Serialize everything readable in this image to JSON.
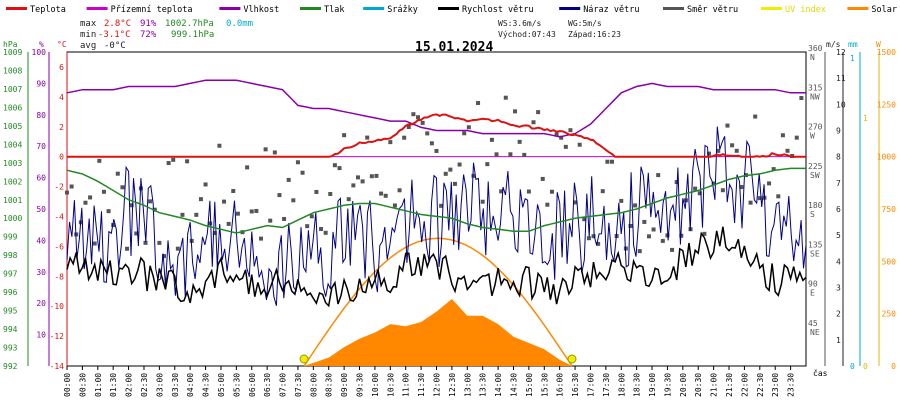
{
  "legend": [
    {
      "label": "Teplota",
      "color": "#dd1111"
    },
    {
      "label": "Přízemní teplota",
      "color": "#cc00cc"
    },
    {
      "label": "Vlhkost",
      "color": "#8800aa"
    },
    {
      "label": "Tlak",
      "color": "#228822"
    },
    {
      "label": "Srážky",
      "color": "#00aacc"
    },
    {
      "label": "Rychlost větru",
      "color": "#000000"
    },
    {
      "label": "Náraz větru",
      "color": "#000088"
    },
    {
      "label": "Směr větru",
      "color": "#555555"
    },
    {
      "label": "UV index",
      "color": "#eeee00"
    },
    {
      "label": "Solar",
      "color": "#ff8800"
    }
  ],
  "stats": {
    "max": {
      "label": "max",
      "temp": "2.8°C",
      "hum": "91%",
      "press": "1002.7hPa",
      "rain": "0.0mm"
    },
    "min": {
      "label": "min",
      "temp": "-3.1°C",
      "hum": "72%",
      "press": "999.1hPa"
    },
    "avg": {
      "label": "avg",
      "temp": "-0°C"
    }
  },
  "title": "15.01.2024",
  "info": {
    "ws": "WS:3.6m/s",
    "wg": "WG:5m/s",
    "sunrise": "Východ:07:43",
    "sunset": "Západ:16:23"
  },
  "axes": {
    "hpa": {
      "unit": "hPa",
      "color": "#228822",
      "ticks": [
        "1009",
        "1008",
        "1007",
        "1006",
        "1005",
        "1004",
        "1003",
        "1002",
        "1001",
        "1000",
        "999",
        "998",
        "997",
        "996",
        "995",
        "994",
        "993",
        "992"
      ]
    },
    "pct": {
      "unit": "%",
      "color": "#8800aa",
      "ticks": [
        "100",
        "90",
        "80",
        "70",
        "60",
        "50",
        "40",
        "30",
        "20",
        "10"
      ]
    },
    "degc": {
      "unit": "°C",
      "color": "#dd1111",
      "ticks": [
        "6",
        "4",
        "2",
        "0",
        "-2",
        "-4",
        "-6",
        "-8",
        "-10",
        "-12",
        "-14"
      ]
    },
    "dir": {
      "color": "#555555",
      "ticks": [
        [
          "360",
          "N"
        ],
        [
          "315",
          "NW"
        ],
        [
          "270",
          "W"
        ],
        [
          "225",
          "SW"
        ],
        [
          "180",
          "S"
        ],
        [
          "135",
          "SE"
        ],
        [
          "90",
          "E"
        ],
        [
          "45",
          "NE"
        ]
      ]
    },
    "ms": {
      "unit": "m/s",
      "color": "#222222",
      "ticks": [
        "12",
        "11",
        "10",
        "9",
        "8",
        "7",
        "6",
        "5",
        "4",
        "3",
        "2",
        "1"
      ]
    },
    "mm": {
      "unit": "mm",
      "color": "#00aacc",
      "ticks": [
        "1",
        "0"
      ]
    },
    "uv": {
      "unit": "UV",
      "color": "#ddbb00",
      "ticks": [
        "1",
        "0"
      ]
    },
    "wm2": {
      "unit": "W",
      "color": "#ff8800",
      "ticks": [
        "1500",
        "1250",
        "1000",
        "750",
        "500",
        "250",
        "0"
      ]
    },
    "xunit": "čas",
    "xticks": [
      "00:00",
      "00:30",
      "01:00",
      "01:30",
      "02:00",
      "02:30",
      "03:00",
      "03:30",
      "04:00",
      "04:30",
      "05:00",
      "05:30",
      "06:00",
      "06:30",
      "07:00",
      "07:30",
      "08:00",
      "08:30",
      "09:00",
      "09:30",
      "10:00",
      "10:30",
      "11:00",
      "11:30",
      "12:00",
      "12:30",
      "13:00",
      "13:30",
      "14:00",
      "14:30",
      "15:00",
      "15:30",
      "16:00",
      "16:30",
      "17:00",
      "17:30",
      "18:00",
      "18:30",
      "19:00",
      "19:30",
      "20:00",
      "20:30",
      "21:00",
      "21:30",
      "22:00",
      "22:30",
      "23:00",
      "23:30"
    ]
  },
  "colors": {
    "temp": "#dd1111",
    "dew": "#cc00cc",
    "hum": "#8800aa",
    "press": "#228822",
    "wind": "#000000",
    "gust": "#000088",
    "dir": "#555555",
    "solar": "#ff8800",
    "uv": "#eeee00"
  },
  "chart_data": {
    "type": "line",
    "title": "15.01.2024",
    "x_range_hours": [
      0,
      24
    ],
    "y_ranges": {
      "temperature_c": [
        -14,
        7
      ],
      "humidity_pct": [
        0,
        100
      ],
      "pressure_hpa": [
        992,
        1009
      ],
      "wind_ms": [
        0,
        12
      ],
      "wind_dir_deg": [
        0,
        360
      ],
      "solar_wm2": [
        0,
        1500
      ]
    },
    "grid": false,
    "legend_position": "top",
    "series": [
      {
        "name": "Teplota",
        "unit": "°C",
        "x": [
          0,
          0.5,
          1,
          1.5,
          2,
          2.5,
          3,
          3.5,
          4,
          4.5,
          5,
          5.5,
          6,
          6.5,
          7,
          7.5,
          8,
          8.5,
          9,
          9.5,
          10,
          10.5,
          11,
          11.5,
          12,
          12.5,
          13,
          13.5,
          14,
          14.5,
          15,
          15.5,
          16,
          16.5,
          17,
          17.5,
          18,
          18.5,
          19,
          19.5,
          20,
          20.5,
          21,
          21.5,
          22,
          22.5,
          23,
          23.5,
          24
        ],
        "values": [
          -1,
          -1.2,
          -1.5,
          -1.2,
          -1.1,
          -1.4,
          -1.5,
          -1.8,
          -2.2,
          -2.5,
          -2.8,
          -3.1,
          -2.9,
          -2.5,
          -2,
          -1.3,
          -0.7,
          -0.1,
          0.5,
          0.9,
          1,
          1.3,
          2,
          2.5,
          2.8,
          2.7,
          2.4,
          2.5,
          2.4,
          2.1,
          2,
          1.8,
          1.7,
          1.4,
          1.2,
          0.5,
          -0.4,
          -0.7,
          -0.9,
          -0.6,
          -0.5,
          -0.2,
          0.1,
          0.1,
          0,
          0,
          0.2,
          0,
          -0.3
        ]
      },
      {
        "name": "Přízemní teplota",
        "unit": "°C",
        "x": [
          0,
          24
        ],
        "values": [
          0,
          0
        ]
      },
      {
        "name": "Vlhkost",
        "unit": "%",
        "x": [
          0,
          0.5,
          1,
          1.5,
          2,
          2.5,
          3,
          3.5,
          4,
          4.5,
          5,
          5.5,
          6,
          6.5,
          7,
          7.5,
          8,
          8.5,
          9,
          9.5,
          10,
          10.5,
          11,
          11.5,
          12,
          12.5,
          13,
          13.5,
          14,
          14.5,
          15,
          15.5,
          16,
          16.5,
          17,
          17.5,
          18,
          18.5,
          19,
          19.5,
          20,
          20.5,
          21,
          21.5,
          22,
          22.5,
          23,
          23.5,
          24
        ],
        "values": [
          87,
          88,
          88,
          88,
          89,
          89,
          89,
          89,
          90,
          91,
          91,
          91,
          90,
          89,
          88,
          83,
          82,
          82,
          81,
          80,
          79,
          78,
          78,
          76,
          75,
          75,
          75,
          74,
          74,
          74,
          74,
          74,
          73,
          74,
          77,
          82,
          87,
          89,
          90,
          89,
          89,
          89,
          88,
          88,
          88,
          88,
          88,
          87,
          87
        ]
      },
      {
        "name": "Tlak",
        "unit": "hPa",
        "x": [
          0,
          0.5,
          1,
          1.5,
          2,
          2.5,
          3,
          3.5,
          4,
          4.5,
          5,
          5.5,
          6,
          6.5,
          7,
          7.5,
          8,
          8.5,
          9,
          9.5,
          10,
          10.5,
          11,
          11.5,
          12,
          12.5,
          13,
          13.5,
          14,
          14.5,
          15,
          15.5,
          16,
          16.5,
          17,
          17.5,
          18,
          18.5,
          19,
          19.5,
          20,
          20.5,
          21,
          21.5,
          22,
          22.5,
          23,
          23.5,
          24
        ],
        "values": [
          1002.6,
          1002.4,
          1002,
          1001.5,
          1001,
          1000.7,
          1000.3,
          1000.1,
          999.9,
          999.6,
          999.4,
          999.2,
          999.4,
          999.6,
          999.5,
          999.9,
          1000.3,
          1000.5,
          1000.7,
          1000.8,
          1000.8,
          1000.6,
          1000.4,
          1000.2,
          1000.1,
          1000,
          999.7,
          999.5,
          999.4,
          999.3,
          999.3,
          999.6,
          999.8,
          1000,
          1000.1,
          1000.2,
          1000.3,
          1000.5,
          1000.8,
          1001.1,
          1001.3,
          1001.5,
          1001.8,
          1002.1,
          1002.3,
          1002.4,
          1002.6,
          1002.7,
          1002.7
        ]
      },
      {
        "name": "Rychlost větru",
        "unit": "m/s",
        "x": [
          0,
          1,
          2,
          3,
          4,
          5,
          6,
          7,
          8,
          9,
          10,
          11,
          12,
          13,
          14,
          15,
          16,
          17,
          18,
          19,
          20,
          21,
          22,
          23,
          24
        ],
        "values": [
          4,
          3.5,
          3.8,
          3.2,
          3,
          3.6,
          3,
          3.2,
          3,
          2.8,
          3,
          3.8,
          3.8,
          3.2,
          3.2,
          3.2,
          2.8,
          3.6,
          3.8,
          3.4,
          4,
          4.8,
          4.6,
          3.2,
          3.4
        ]
      },
      {
        "name": "Náraz větru",
        "unit": "m/s",
        "x": [
          0,
          1,
          2,
          3,
          4,
          5,
          6,
          7,
          8,
          9,
          10,
          11,
          12,
          13,
          14,
          15,
          16,
          17,
          18,
          19,
          20,
          21,
          22,
          23,
          24
        ],
        "values": [
          5,
          4.5,
          6,
          5,
          4,
          5,
          4.5,
          4,
          4,
          5,
          4.5,
          5.5,
          5.5,
          6,
          6,
          5.5,
          5,
          5.5,
          5.5,
          6,
          6,
          7.5,
          7,
          5,
          4.5
        ]
      },
      {
        "name": "Směr větru",
        "unit": "°",
        "x": [
          0,
          1,
          2,
          3,
          4,
          5,
          6,
          7,
          8,
          9,
          10,
          11,
          12,
          13,
          14,
          15,
          16,
          17,
          18,
          19,
          20,
          21,
          22,
          23,
          24
        ],
        "values": [
          200,
          190,
          185,
          180,
          180,
          195,
          195,
          200,
          205,
          210,
          225,
          230,
          240,
          245,
          250,
          245,
          240,
          200,
          190,
          180,
          200,
          215,
          235,
          250,
          260
        ]
      },
      {
        "name": "Solar",
        "unit": "W/m²",
        "x": [
          7.7,
          8.5,
          9,
          9.5,
          10,
          10.5,
          11,
          11.5,
          12,
          12.5,
          13,
          13.5,
          14,
          14.5,
          15,
          15.5,
          16,
          16.4
        ],
        "values": [
          0,
          40,
          90,
          130,
          160,
          200,
          190,
          210,
          260,
          320,
          240,
          240,
          200,
          140,
          110,
          80,
          30,
          0
        ]
      }
    ]
  }
}
